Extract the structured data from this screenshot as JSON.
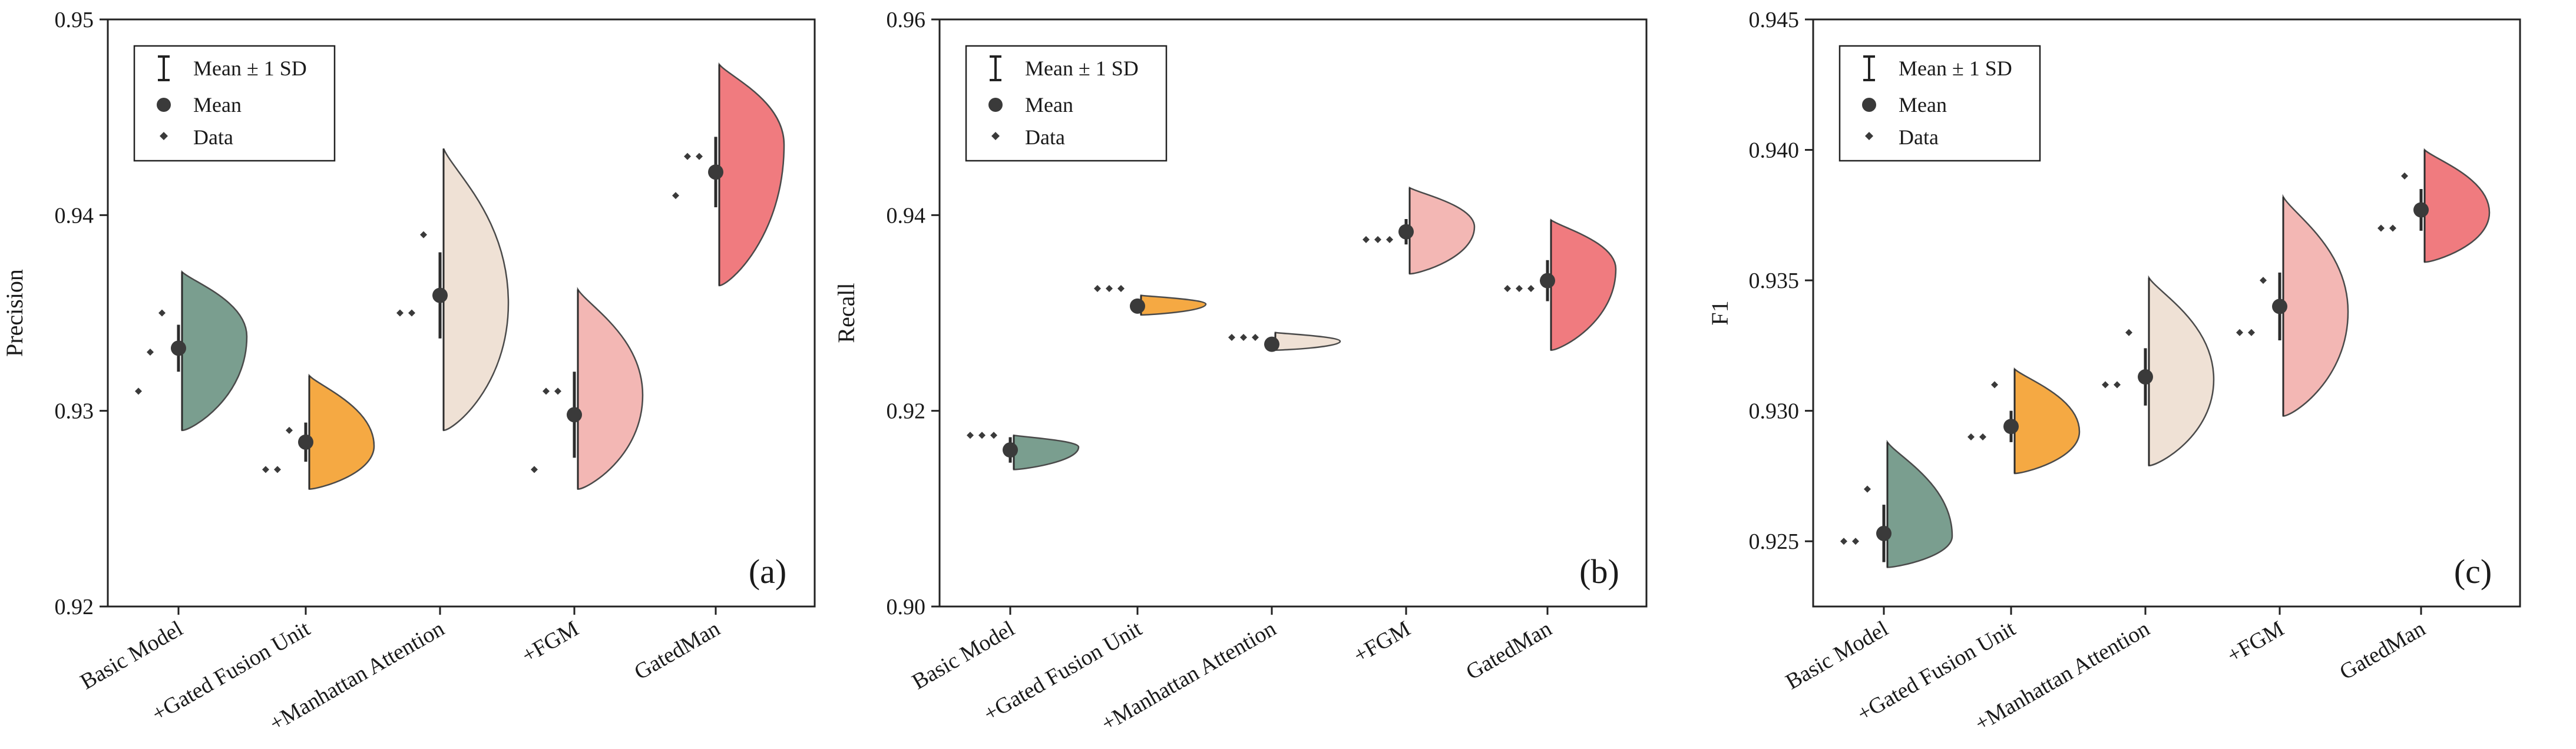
{
  "legend_labels": {
    "sd": "Mean ± 1 SD",
    "mean": "Mean",
    "data": "Data"
  },
  "model_colors": [
    "#7a9e8f",
    "#f5a943",
    "#efe1d5",
    "#f3b7b4",
    "#f07b7f"
  ],
  "chart_data": [
    {
      "type": "violin",
      "panel_label": "(a)",
      "ylabel": "Precision",
      "xlabel": "",
      "ylim": [
        0.92,
        0.95
      ],
      "yticks": [
        "0.92",
        "0.93",
        "0.94",
        "0.95"
      ],
      "categories": [
        "Basic Model",
        "+Gated Fusion Unit",
        "+Manhattan Attention",
        "+FGM",
        "GatedMan"
      ],
      "means": [
        0.9332,
        0.9284,
        0.9359,
        0.9298,
        0.9422
      ],
      "sd": [
        0.0012,
        0.001,
        0.0022,
        0.0022,
        0.0018
      ],
      "data_points": [
        [
          0.935,
          0.933,
          0.931
        ],
        [
          0.929,
          0.927,
          0.927
        ],
        [
          0.939,
          0.935,
          0.935
        ],
        [
          0.931,
          0.931,
          0.927
        ],
        [
          0.943,
          0.943,
          0.941
        ]
      ],
      "kde_range": [
        [
          0.929,
          0.9371
        ],
        [
          0.926,
          0.9318
        ],
        [
          0.929,
          0.9434
        ],
        [
          0.926,
          0.9362
        ],
        [
          0.9364,
          0.9477
        ]
      ],
      "kde_peak": [
        0.9338,
        0.9282,
        0.9355,
        0.9308,
        0.9436
      ]
    },
    {
      "type": "violin",
      "panel_label": "(b)",
      "ylabel": "Recall",
      "xlabel": "",
      "ylim": [
        0.9,
        0.96
      ],
      "yticks": [
        "0.90",
        "0.92",
        "0.94",
        "0.96"
      ],
      "categories": [
        "Basic Model",
        "+Gated Fusion Unit",
        "+Manhattan Attention",
        "+FGM",
        "GatedMan"
      ],
      "means": [
        0.916,
        0.9307,
        0.9268,
        0.9383,
        0.9333
      ],
      "sd": [
        0.0013,
        0.0006,
        0.0004,
        0.0013,
        0.0021
      ],
      "data_points": [
        [
          0.9175,
          0.9175,
          0.9175
        ],
        [
          0.9325,
          0.9325,
          0.9325
        ],
        [
          0.9275,
          0.9275,
          0.9275
        ],
        [
          0.9375,
          0.9375,
          0.9375
        ],
        [
          0.9325,
          0.9325,
          0.9325
        ]
      ],
      "kde_range": [
        [
          0.914,
          0.9175
        ],
        [
          0.9298,
          0.9318
        ],
        [
          0.9262,
          0.928
        ],
        [
          0.934,
          0.9428
        ],
        [
          0.9262,
          0.9395
        ]
      ],
      "kde_peak": [
        0.9163,
        0.9309,
        0.9271,
        0.9388,
        0.9345
      ]
    },
    {
      "type": "violin",
      "panel_label": "(c)",
      "ylabel": "F1",
      "xlabel": "",
      "ylim": [
        0.9225,
        0.945
      ],
      "yticks": [
        "0.925",
        "0.930",
        "0.935",
        "0.940",
        "0.945"
      ],
      "categories": [
        "Basic Model",
        "+Gated Fusion Unit",
        "+Manhattan Attention",
        "+FGM",
        "GatedMan"
      ],
      "means": [
        0.9253,
        0.9294,
        0.9313,
        0.934,
        0.9377
      ],
      "sd": [
        0.0011,
        0.0006,
        0.0011,
        0.0013,
        0.0008
      ],
      "data_points": [
        [
          0.927,
          0.925,
          0.925
        ],
        [
          0.931,
          0.929,
          0.929
        ],
        [
          0.933,
          0.931,
          0.931
        ],
        [
          0.935,
          0.933,
          0.933
        ],
        [
          0.939,
          0.937,
          0.937
        ]
      ],
      "kde_range": [
        [
          0.924,
          0.9288
        ],
        [
          0.9276,
          0.9316
        ],
        [
          0.9279,
          0.9351
        ],
        [
          0.9298,
          0.9382
        ],
        [
          0.9357,
          0.94
        ]
      ],
      "kde_peak": [
        0.9252,
        0.9292,
        0.9312,
        0.9338,
        0.9376
      ]
    }
  ]
}
